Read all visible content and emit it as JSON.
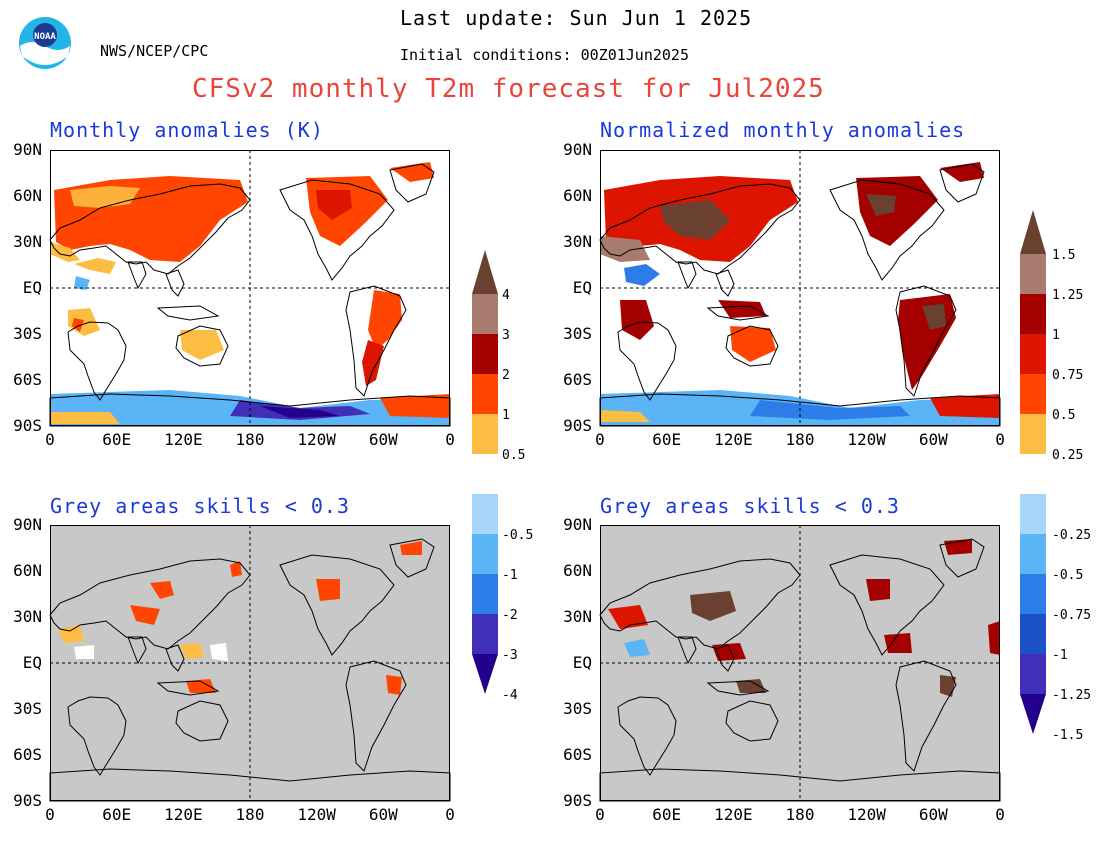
{
  "header": {
    "last_update": "Last update: Sun Jun 1 2025",
    "agency": "NWS/NCEP/CPC",
    "initial_conditions": "Initial conditions: 00Z01Jun2025",
    "main_title": "CFSv2 monthly T2m forecast for Jul2025",
    "logo_text": "NOAA"
  },
  "panels": {
    "top_left_title": "Monthly anomalies (K)",
    "top_right_title": "Normalized monthly anomalies",
    "bottom_left_title": "Grey areas skills < 0.3",
    "bottom_right_title": "Grey areas skills < 0.3"
  },
  "axes": {
    "lat_labels": [
      "90N",
      "60N",
      "30N",
      "EQ",
      "30S",
      "60S",
      "90S"
    ],
    "lon_labels": [
      "0",
      "60E",
      "120E",
      "180",
      "120W",
      "60W",
      "0"
    ]
  },
  "colorbar_left": {
    "labels": [
      "4",
      "3",
      "2",
      "1",
      "0.5",
      "-0.5",
      "-1",
      "-2",
      "-3",
      "-4"
    ]
  },
  "colorbar_right": {
    "labels": [
      "1.5",
      "1.25",
      "1",
      "0.75",
      "0.5",
      "0.25",
      "-0.25",
      "-0.5",
      "-0.75",
      "-1",
      "-1.25",
      "-1.5"
    ]
  },
  "colors": {
    "title_red": "#e8453c",
    "panel_title_blue": "#1a3ad8",
    "mask_grey": "#c8c8c8",
    "levels_warm": [
      "#fdbc42",
      "#ff4500",
      "#dd1500",
      "#a50000",
      "#a87b6f",
      "#6a4030"
    ],
    "levels_cool": [
      "#a6d7fb",
      "#5ab4f5",
      "#2d7de8",
      "#1a50c8",
      "#4030b8",
      "#24008c"
    ]
  }
}
